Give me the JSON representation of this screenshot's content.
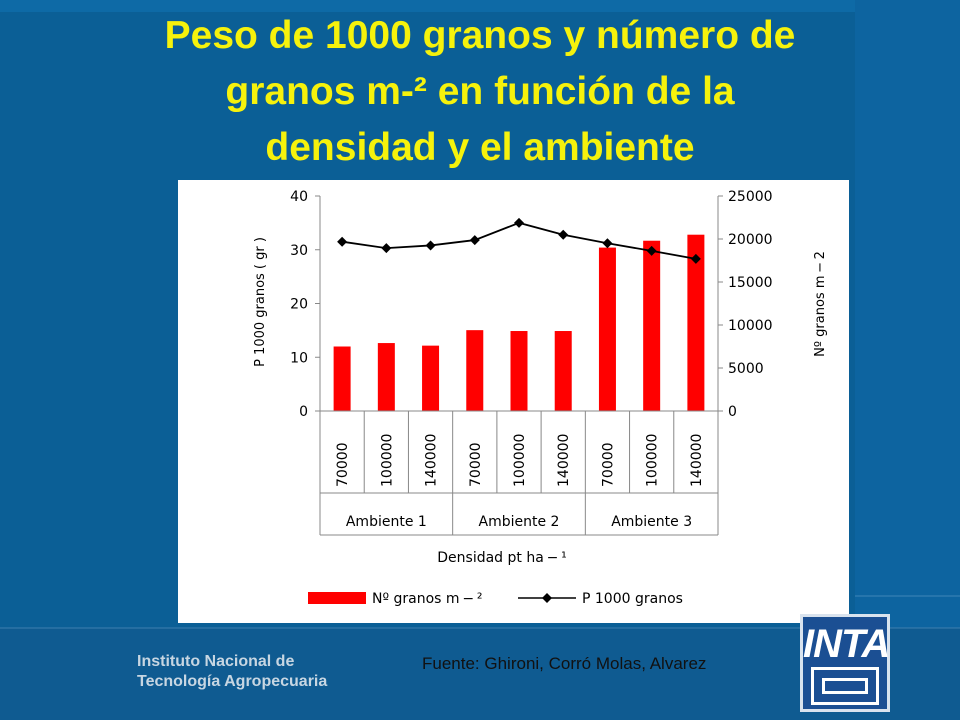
{
  "slide": {
    "title_lines": [
      "Peso de 1000 granos y número de",
      "granos m-² en función de la",
      "densidad y el ambiente"
    ],
    "institution_lines": [
      "Instituto Nacional de",
      "Tecnología Agropecuaria"
    ],
    "source": "Fuente: Ghironi, Corró Molas, Alvarez",
    "logo_text": "INTA",
    "colors": {
      "background": "#0b5f96",
      "title": "#f6f20c",
      "bars": "#ff0000",
      "line": "#000000"
    }
  },
  "chart_data": {
    "type": "bar",
    "categories": [
      "70000",
      "100000",
      "140000",
      "70000",
      "100000",
      "140000",
      "70000",
      "100000",
      "140000"
    ],
    "groups": [
      {
        "label": "Ambiente 1",
        "span": 3
      },
      {
        "label": "Ambiente 2",
        "span": 3
      },
      {
        "label": "Ambiente 3",
        "span": 3
      }
    ],
    "series": [
      {
        "name": "Nº granos m − ²",
        "type": "bar",
        "axis": "right",
        "color": "#ff0000",
        "values": [
          7500,
          7900,
          7600,
          9400,
          9300,
          9300,
          19000,
          19800,
          20500
        ]
      },
      {
        "name": "P 1000 granos",
        "type": "line",
        "axis": "left",
        "color": "#000000",
        "marker": "diamond",
        "values": [
          31.5,
          30.3,
          30.8,
          31.8,
          35,
          32.8,
          31.2,
          29.8,
          28.3
        ]
      }
    ],
    "xlabel": "Densidad pt ha − ¹",
    "ylabel_left": "P 1000 granos ( gr )",
    "ylabel_right": "Nº granos m − 2",
    "ylim_left": [
      0,
      40
    ],
    "yticks_left": [
      0,
      10,
      20,
      30,
      40
    ],
    "ylim_right": [
      0,
      25000
    ],
    "yticks_right": [
      0,
      5000,
      10000,
      15000,
      20000,
      25000
    ],
    "grid": false,
    "legend_position": "bottom"
  }
}
